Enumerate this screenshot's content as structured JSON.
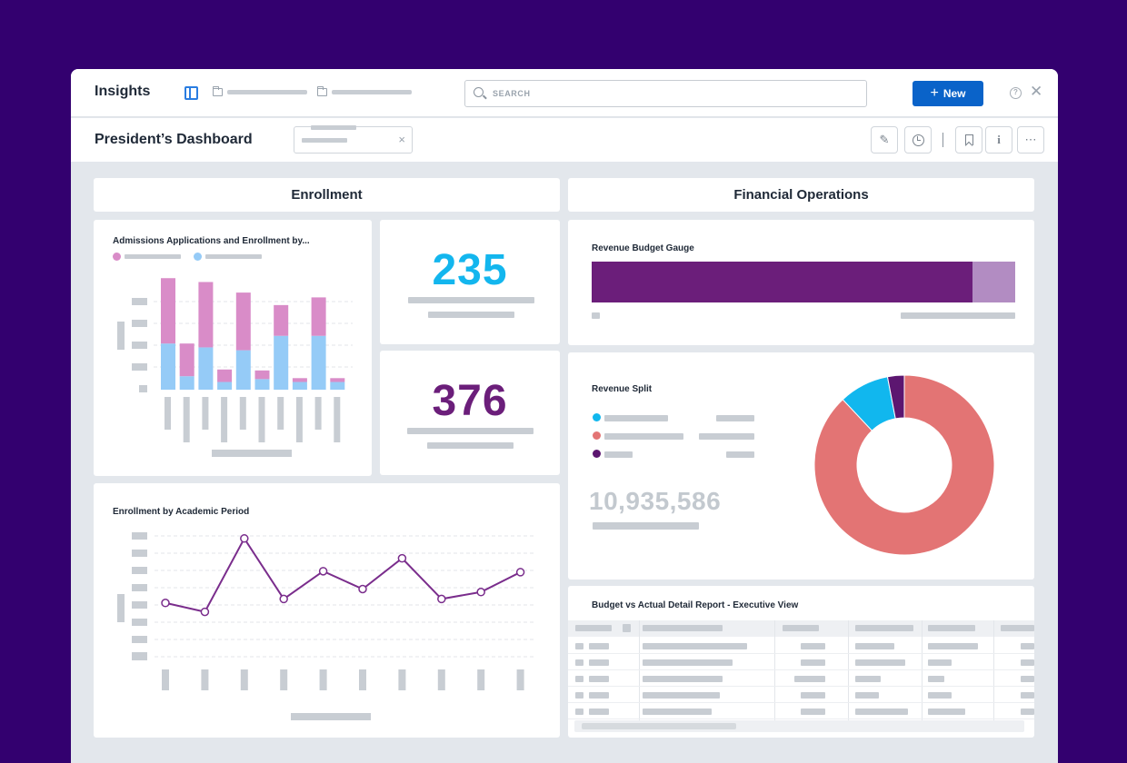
{
  "app": {
    "title": "Insights",
    "search_placeholder": "SEARCH",
    "new_button_label": "New",
    "help_glyph": "?",
    "close_glyph": "✕"
  },
  "page": {
    "title": "President’s Dashboard",
    "filter_clear_glyph": "×"
  },
  "toolbar": {
    "more_glyph": "⋯",
    "info_glyph": "i",
    "edit_glyph": "✎"
  },
  "enrollment": {
    "section_title": "Enrollment",
    "admissions_chart_title": "Admissions Applications and Enrollment by...",
    "kpi_1": "235",
    "kpi_2": "376",
    "academic_period_title": "Enrollment by Academic Period"
  },
  "financial": {
    "section_title": "Financial Operations",
    "gauge_title": "Revenue Budget Gauge",
    "split_title": "Revenue Split",
    "split_total": "10,935,586",
    "report_title": "Budget vs Actual Detail Report - Executive View"
  },
  "colors": {
    "kpi_1": "#13b6ee",
    "kpi_2": "#6b1e7a",
    "bar_pink": "#d98cc8",
    "bar_blue": "#95cbf7",
    "line": "#7a2d8c",
    "gauge_fill": "#6b1e7a",
    "gauge_rest": "#b28cc2",
    "donut_salmon": "#e37474",
    "donut_cyan": "#11b7ee",
    "donut_purple": "#5c1670",
    "accent": "#0a63c9"
  },
  "chart_data": [
    {
      "type": "bar",
      "title": "Admissions Applications and Enrollment by...",
      "stacked": true,
      "categories_count": 10,
      "series": [
        {
          "name": "blue",
          "values": [
            48,
            14,
            44,
            8,
            41,
            11,
            56,
            8,
            56,
            8
          ]
        },
        {
          "name": "pink",
          "values": [
            68,
            34,
            68,
            13,
            60,
            9,
            32,
            4,
            40,
            4
          ]
        }
      ],
      "ylim": [
        0,
        120
      ]
    },
    {
      "type": "line",
      "title": "Enrollment by Academic Period",
      "x_count": 10,
      "values": [
        35,
        26,
        100,
        39,
        67,
        49,
        80,
        39,
        46,
        66
      ],
      "ylim": [
        0,
        120
      ]
    },
    {
      "type": "bar",
      "title": "Revenue Budget Gauge",
      "values": [
        0.9
      ],
      "ylim": [
        0,
        1
      ]
    },
    {
      "type": "pie",
      "title": "Revenue Split",
      "donut": true,
      "values": [
        88,
        9,
        3
      ],
      "colors": [
        "#e37474",
        "#11b7ee",
        "#5c1670"
      ]
    }
  ]
}
